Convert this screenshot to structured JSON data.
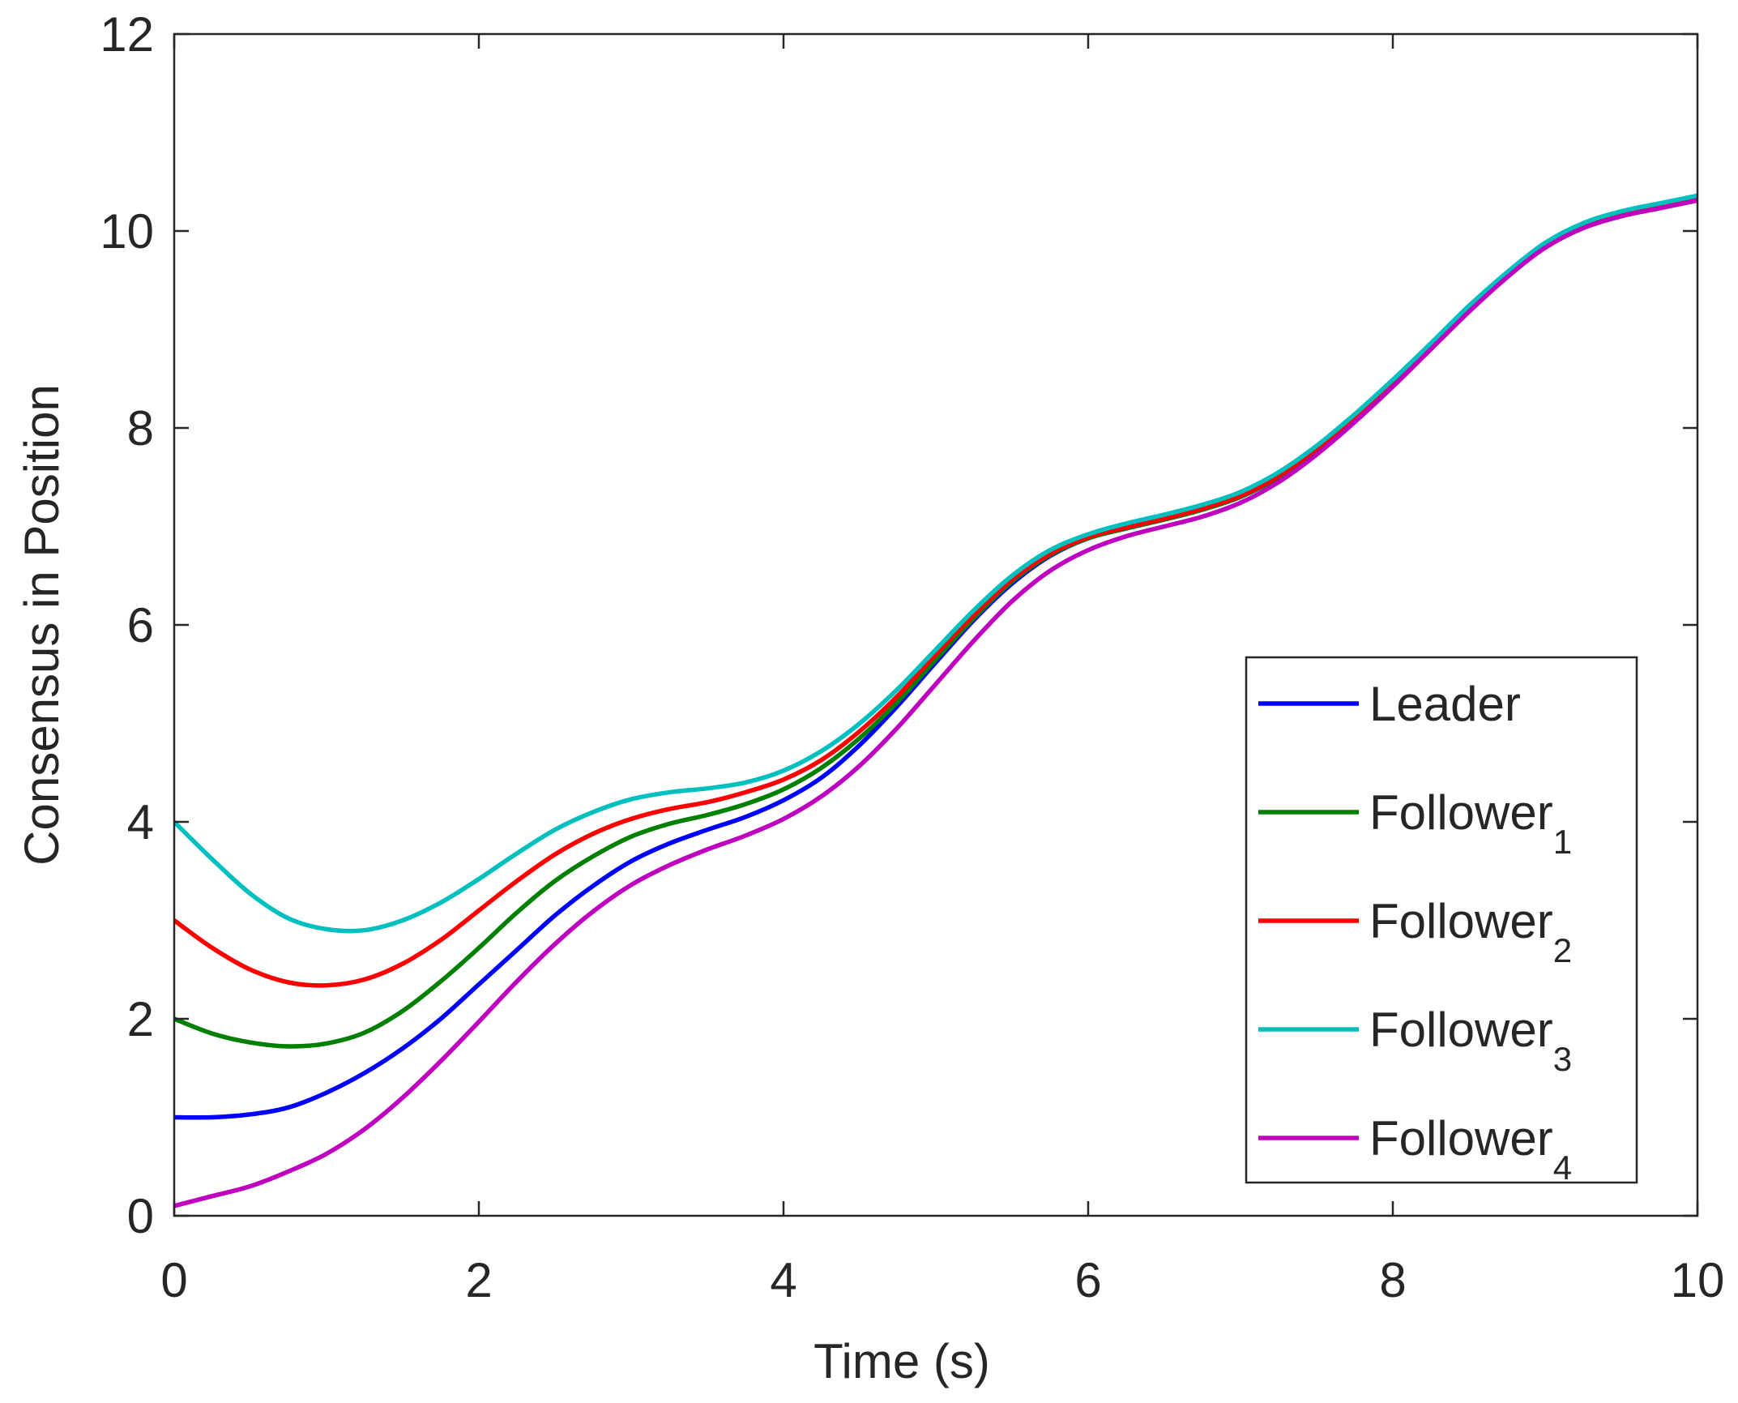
{
  "chart_data": {
    "type": "line",
    "title": "",
    "xlabel": "Time (s)",
    "ylabel": "Consensus in Position",
    "xlim": [
      0,
      10
    ],
    "ylim": [
      0,
      12
    ],
    "xticks": [
      0,
      2,
      4,
      6,
      8,
      10
    ],
    "yticks": [
      0,
      2,
      4,
      6,
      8,
      10,
      12
    ],
    "xtick_labels": [
      "0",
      "2",
      "4",
      "6",
      "8",
      "10"
    ],
    "ytick_labels": [
      "0",
      "2",
      "4",
      "6",
      "8",
      "10",
      "12"
    ],
    "grid": false,
    "legend_position": "bottom-right",
    "x": [
      0,
      0.25,
      0.5,
      0.75,
      1,
      1.25,
      1.5,
      1.75,
      2,
      2.25,
      2.5,
      2.75,
      3,
      3.25,
      3.5,
      3.75,
      4,
      4.25,
      4.5,
      4.75,
      5,
      5.25,
      5.5,
      5.75,
      6,
      6.25,
      6.5,
      6.75,
      7,
      7.25,
      7.5,
      7.75,
      8,
      8.25,
      8.5,
      8.75,
      9,
      9.25,
      9.5,
      9.75,
      10
    ],
    "series": [
      {
        "name": "Leader",
        "sub": "",
        "color": "#0000ff",
        "values": [
          1.0,
          1.0,
          1.03,
          1.1,
          1.25,
          1.45,
          1.7,
          2.0,
          2.35,
          2.7,
          3.05,
          3.35,
          3.6,
          3.78,
          3.92,
          4.05,
          4.22,
          4.45,
          4.78,
          5.18,
          5.62,
          6.05,
          6.42,
          6.7,
          6.88,
          6.98,
          7.07,
          7.17,
          7.3,
          7.5,
          7.78,
          8.1,
          8.45,
          8.82,
          9.2,
          9.55,
          9.85,
          10.05,
          10.17,
          10.25,
          10.33
        ]
      },
      {
        "name": "Follower",
        "sub": "1",
        "color": "#008000",
        "values": [
          2.0,
          1.85,
          1.76,
          1.72,
          1.75,
          1.86,
          2.08,
          2.38,
          2.72,
          3.08,
          3.4,
          3.65,
          3.85,
          3.98,
          4.07,
          4.18,
          4.33,
          4.55,
          4.85,
          5.22,
          5.65,
          6.07,
          6.44,
          6.71,
          6.88,
          6.98,
          7.07,
          7.17,
          7.3,
          7.5,
          7.78,
          8.1,
          8.45,
          8.82,
          9.2,
          9.55,
          9.85,
          10.05,
          10.17,
          10.25,
          10.33
        ]
      },
      {
        "name": "Follower",
        "sub": "2",
        "color": "#ff0000",
        "values": [
          3.0,
          2.72,
          2.5,
          2.37,
          2.34,
          2.4,
          2.56,
          2.8,
          3.1,
          3.4,
          3.67,
          3.88,
          4.03,
          4.13,
          4.2,
          4.3,
          4.43,
          4.63,
          4.92,
          5.28,
          5.7,
          6.1,
          6.46,
          6.72,
          6.89,
          6.99,
          7.08,
          7.18,
          7.31,
          7.51,
          7.79,
          8.11,
          8.46,
          8.83,
          9.2,
          9.55,
          9.85,
          10.05,
          10.17,
          10.25,
          10.33
        ]
      },
      {
        "name": "Follower",
        "sub": "3",
        "color": "#00bfbf",
        "values": [
          4.0,
          3.62,
          3.27,
          3.02,
          2.91,
          2.9,
          3.0,
          3.18,
          3.42,
          3.68,
          3.92,
          4.1,
          4.23,
          4.3,
          4.34,
          4.4,
          4.52,
          4.72,
          5.0,
          5.35,
          5.75,
          6.15,
          6.5,
          6.76,
          6.92,
          7.03,
          7.12,
          7.22,
          7.35,
          7.55,
          7.82,
          8.14,
          8.49,
          8.86,
          9.24,
          9.58,
          9.88,
          10.08,
          10.2,
          10.28,
          10.36
        ]
      },
      {
        "name": "Follower",
        "sub": "4",
        "color": "#bf00bf",
        "values": [
          0.1,
          0.2,
          0.3,
          0.45,
          0.63,
          0.88,
          1.2,
          1.57,
          1.97,
          2.38,
          2.76,
          3.09,
          3.36,
          3.56,
          3.72,
          3.86,
          4.03,
          4.26,
          4.57,
          4.96,
          5.4,
          5.84,
          6.24,
          6.55,
          6.76,
          6.9,
          7.0,
          7.1,
          7.24,
          7.45,
          7.73,
          8.06,
          8.42,
          8.8,
          9.18,
          9.53,
          9.83,
          10.03,
          10.15,
          10.23,
          10.31
        ]
      }
    ]
  }
}
